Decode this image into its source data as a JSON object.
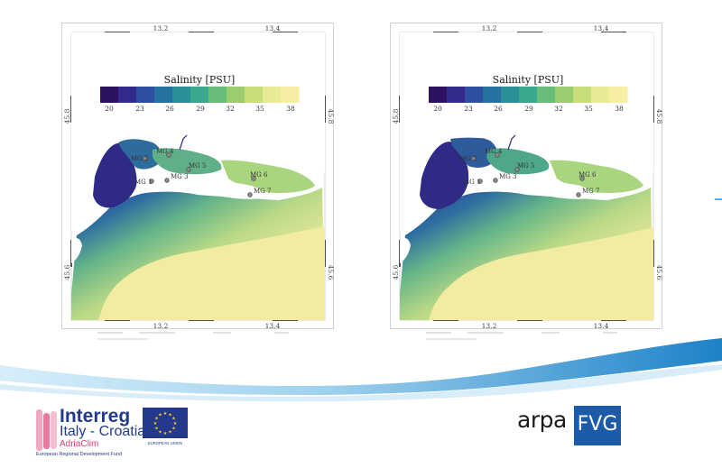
{
  "maps": [
    {
      "colorbar_title": "Salinity [PSU]",
      "colorbar_ticks": [
        "20",
        "23",
        "26",
        "29",
        "32",
        "35",
        "38"
      ],
      "lon_ticks": [
        "13.2",
        "13.4"
      ],
      "lat_ticks": [
        "45.8",
        "45.6"
      ],
      "stations": [
        "MG 1",
        "MG 2",
        "MG 3",
        "MG 4",
        "MG 5",
        "MG 6",
        "MG 7"
      ],
      "footer_notes": [
        "",
        "",
        "",
        ""
      ]
    },
    {
      "colorbar_title": "Salinity [PSU]",
      "colorbar_ticks": [
        "20",
        "23",
        "26",
        "29",
        "32",
        "35",
        "38"
      ],
      "lon_ticks": [
        "13.2",
        "13.4"
      ],
      "lat_ticks": [
        "45.8",
        "45.6"
      ],
      "stations": [
        "MG 1",
        "MG 2",
        "MG 3",
        "MG 4",
        "MG 5",
        "MG 6",
        "MG 7"
      ],
      "footer_notes": [
        "",
        "",
        "",
        ""
      ]
    }
  ],
  "colorscale": [
    "#2c1261",
    "#332b8c",
    "#2e4fa0",
    "#25719f",
    "#2a8f99",
    "#3aa88c",
    "#68bd78",
    "#9bcd70",
    "#c8de7b",
    "#e8ea95",
    "#f6eea3"
  ],
  "colors": {
    "sea_fresh": "#2e2b86",
    "sea_mid": "#5fb088",
    "sea_salty": "#f5eba3",
    "land": "#ffffff",
    "wave_dark": "#1e82c8",
    "wave_light": "#9fd1ee",
    "interreg_blue": "#233a8c",
    "adriaclim_pink": "#d3406b",
    "eu_blue": "#233a8c",
    "eu_star": "#f4d21f",
    "arpa_blue": "#1c5ba8"
  },
  "logos": {
    "interreg_word": "Interreg",
    "interreg_country": "Italy - Croatia",
    "interreg_project": "AdriaClim",
    "interreg_fund": "European Regional Development Fund",
    "eu_label": "EUROPEAN UNION",
    "arpa_word": "arpa",
    "arpa_fvg": "FVG"
  }
}
